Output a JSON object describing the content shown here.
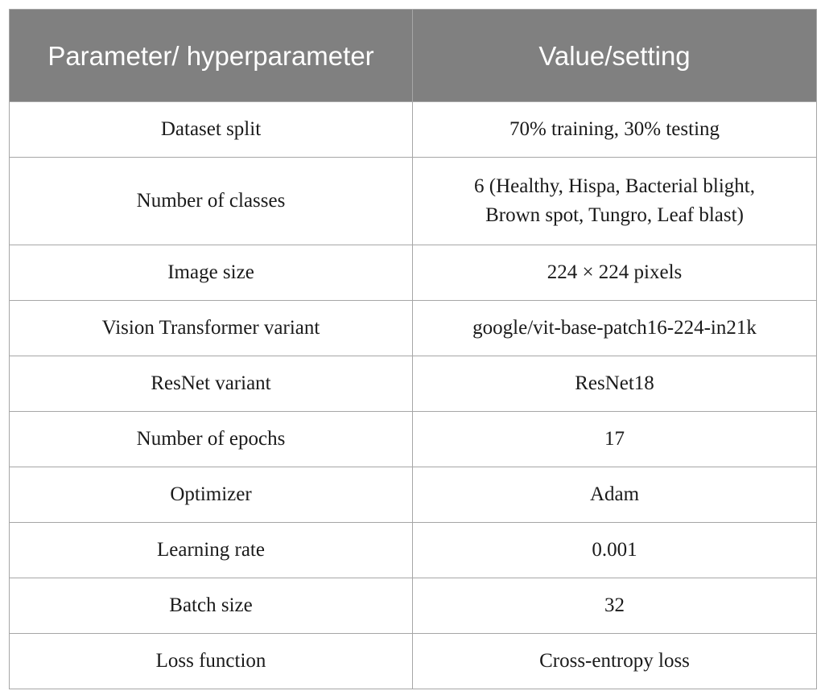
{
  "table": {
    "headers": [
      "Parameter/ hyperparameter",
      "Value/setting"
    ],
    "rows": [
      [
        "Dataset split",
        "70% training, 30% testing"
      ],
      [
        "Number of classes",
        "6 (Healthy, Hispa, Bacterial blight, Brown spot, Tungro, Leaf blast)"
      ],
      [
        "Image size",
        "224 × 224 pixels"
      ],
      [
        "Vision Transformer variant",
        "google/vit-base-patch16-224-in21k"
      ],
      [
        "ResNet variant",
        "ResNet18"
      ],
      [
        "Number of epochs",
        "17"
      ],
      [
        "Optimizer",
        "Adam"
      ],
      [
        "Learning rate",
        "0.001"
      ],
      [
        "Batch size",
        "32"
      ],
      [
        "Loss function",
        "Cross-entropy loss"
      ]
    ]
  }
}
